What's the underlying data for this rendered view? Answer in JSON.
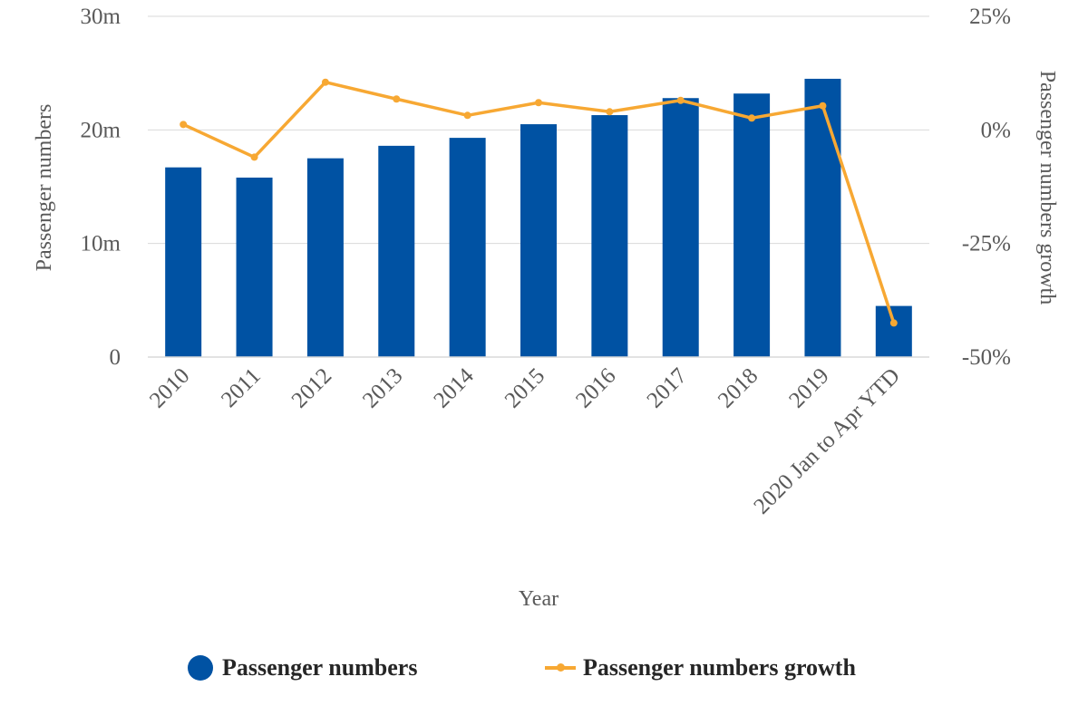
{
  "chart_data": {
    "type": "bar",
    "x_label": "Year",
    "categories": [
      "2010",
      "2011",
      "2012",
      "2013",
      "2014",
      "2015",
      "2016",
      "2017",
      "2018",
      "2019",
      "2020 Jan to Apr YTD"
    ],
    "series": [
      {
        "name": "Passenger numbers",
        "type": "bar",
        "axis": "left",
        "color": "#0052a3",
        "values": [
          16.7,
          15.8,
          17.5,
          18.6,
          19.3,
          20.5,
          21.3,
          22.8,
          23.2,
          24.5,
          4.5
        ]
      },
      {
        "name": "Passenger numbers growth",
        "type": "line",
        "axis": "right",
        "color": "#f7a833",
        "values": [
          1.2,
          -6.0,
          10.5,
          6.8,
          3.2,
          6.0,
          4.0,
          6.5,
          2.6,
          5.3,
          -42.5
        ]
      }
    ],
    "y_left": {
      "label": "Passenger numbers",
      "min": 0,
      "max": 30,
      "ticks": [
        0,
        10,
        20,
        30
      ],
      "tick_labels": [
        "0",
        "10m",
        "20m",
        "30m"
      ]
    },
    "y_right": {
      "label": "Passenger numbers growth",
      "min": -50,
      "max": 25,
      "ticks": [
        -50,
        -25,
        0,
        25
      ],
      "tick_labels": [
        "-50%",
        "-25%",
        "0%",
        "25%"
      ]
    },
    "grid": true,
    "legend": "bottom"
  }
}
